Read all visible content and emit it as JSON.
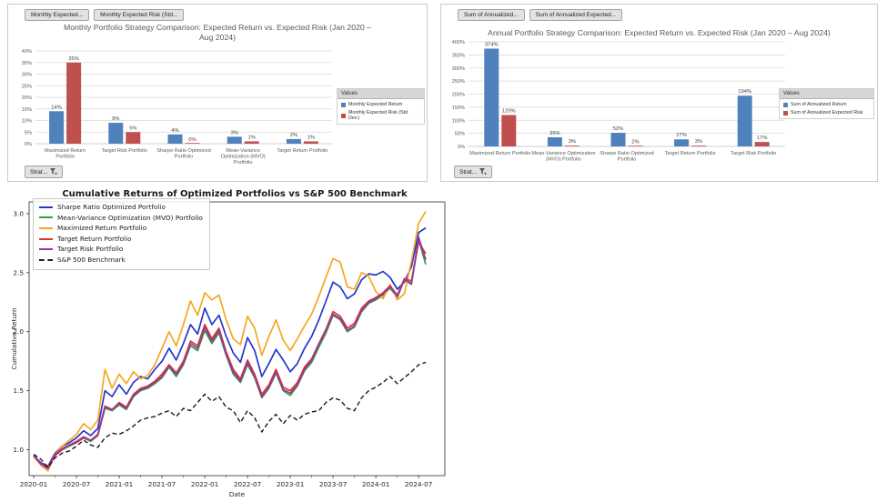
{
  "panels": {
    "monthly": {
      "field_buttons": [
        "Monthly Expected...",
        "Monthly Expected Risk  (Std..."
      ],
      "legend_header": "Values",
      "strategy_button": "Strat..."
    },
    "annual": {
      "field_buttons": [
        "Sum of Annualized...",
        "Sum of Annualized Expected..."
      ],
      "legend_header": "Values",
      "strategy_button": "Strat..."
    }
  },
  "chart_data": [
    {
      "type": "bar",
      "title": "Monthly Portfolio Strategy Comparison: Expected Return vs. Expected Risk (Jan 2020 – Aug 2024)",
      "categories": [
        "Maximized Return Portfolio",
        "Target Risk Portfolio",
        "Sharpe Ratio Optimized Portfolio",
        "Mean-Variance Optimization (MVO) Portfolio",
        "Target Return Portfolio"
      ],
      "series": [
        {
          "name": "Monthly Expected Return",
          "color": "#4F81BD",
          "values": [
            14,
            9,
            4,
            3,
            2
          ]
        },
        {
          "name": "Monthly Expected Risk (Std. Dev.)",
          "color": "#C0504D",
          "values": [
            35,
            5,
            0,
            1,
            1
          ]
        }
      ],
      "ylim": [
        0,
        40
      ],
      "ytick_step": 5,
      "unit": "%",
      "grid": true,
      "legend_position": "right"
    },
    {
      "type": "bar",
      "title": "Annual Portfolio Strategy Comparison: Expected Return vs. Expected Risk (Jan 2020 – Aug 2024)",
      "categories": [
        "Maximized Return Portfolio",
        "Mean-Variance Optimization (MVO) Portfolio",
        "Sharpe Ratio Optimized Portfolio",
        "Target Return Portfolio",
        "Target Risk Portfolio"
      ],
      "series": [
        {
          "name": "Sum of Annualized Return",
          "color": "#4F81BD",
          "values": [
            374,
            35,
            52,
            27,
            194
          ]
        },
        {
          "name": "Sum of Annualized Expected Risk",
          "color": "#C0504D",
          "values": [
            120,
            3,
            2,
            3,
            17
          ]
        }
      ],
      "ylim": [
        0,
        400
      ],
      "ytick_step": 50,
      "unit": "%",
      "grid": true,
      "legend_position": "right"
    },
    {
      "type": "line",
      "title": "Cumulative Returns of Optimized Portfolios vs S&P 500 Benchmark",
      "xlabel": "Date",
      "ylabel": "Cumulative Return",
      "x_ticks": [
        "2020-01",
        "2020-07",
        "2021-01",
        "2021-07",
        "2022-01",
        "2022-07",
        "2023-01",
        "2023-07",
        "2024-01",
        "2024-07"
      ],
      "y_ticks": [
        1.0,
        1.5,
        2.0,
        2.5,
        3.0
      ],
      "ylim": [
        0.78,
        3.1
      ],
      "grid": false,
      "legend_position": "upper left",
      "months": [
        "2020-01",
        "2020-02",
        "2020-03",
        "2020-04",
        "2020-05",
        "2020-06",
        "2020-07",
        "2020-08",
        "2020-09",
        "2020-10",
        "2020-11",
        "2020-12",
        "2021-01",
        "2021-02",
        "2021-03",
        "2021-04",
        "2021-05",
        "2021-06",
        "2021-07",
        "2021-08",
        "2021-09",
        "2021-10",
        "2021-11",
        "2021-12",
        "2022-01",
        "2022-02",
        "2022-03",
        "2022-04",
        "2022-05",
        "2022-06",
        "2022-07",
        "2022-08",
        "2022-09",
        "2022-10",
        "2022-11",
        "2022-12",
        "2023-01",
        "2023-02",
        "2023-03",
        "2023-04",
        "2023-05",
        "2023-06",
        "2023-07",
        "2023-08",
        "2023-09",
        "2023-10",
        "2023-11",
        "2023-12",
        "2024-01",
        "2024-02",
        "2024-03",
        "2024-04",
        "2024-05",
        "2024-06",
        "2024-07",
        "2024-08"
      ],
      "series": [
        {
          "name": "Sharpe Ratio Optimized Portfolio",
          "color": "#2336CC",
          "dash": null,
          "values": [
            0.95,
            0.89,
            0.86,
            0.97,
            1.03,
            1.06,
            1.1,
            1.16,
            1.12,
            1.18,
            1.5,
            1.45,
            1.55,
            1.47,
            1.57,
            1.62,
            1.6,
            1.68,
            1.75,
            1.86,
            1.76,
            1.9,
            2.06,
            1.98,
            2.2,
            2.06,
            2.14,
            1.96,
            1.82,
            1.74,
            1.95,
            1.84,
            1.62,
            1.73,
            1.85,
            1.76,
            1.66,
            1.73,
            1.86,
            1.96,
            2.1,
            2.26,
            2.42,
            2.38,
            2.28,
            2.32,
            2.44,
            2.49,
            2.48,
            2.51,
            2.46,
            2.36,
            2.42,
            2.55,
            2.84,
            2.88
          ]
        },
        {
          "name": "Mean-Variance Optimization (MVO) Portfolio",
          "color": "#2E9E3C",
          "dash": null,
          "values": [
            0.95,
            0.88,
            0.85,
            0.95,
            1.0,
            1.03,
            1.06,
            1.1,
            1.07,
            1.12,
            1.35,
            1.33,
            1.38,
            1.34,
            1.45,
            1.5,
            1.52,
            1.56,
            1.61,
            1.7,
            1.62,
            1.72,
            1.88,
            1.84,
            2.01,
            1.9,
            1.99,
            1.8,
            1.64,
            1.57,
            1.72,
            1.61,
            1.44,
            1.52,
            1.65,
            1.5,
            1.46,
            1.54,
            1.67,
            1.74,
            1.87,
            1.99,
            2.14,
            2.1,
            2.0,
            2.04,
            2.17,
            2.24,
            2.27,
            2.31,
            2.37,
            2.29,
            2.44,
            2.4,
            2.78,
            2.57
          ]
        },
        {
          "name": "Maximized Return Portfolio",
          "color": "#F5A623",
          "dash": null,
          "values": [
            0.94,
            0.87,
            0.82,
            0.96,
            1.03,
            1.08,
            1.13,
            1.22,
            1.17,
            1.25,
            1.68,
            1.52,
            1.64,
            1.56,
            1.66,
            1.6,
            1.63,
            1.72,
            1.86,
            2.0,
            1.88,
            2.06,
            2.26,
            2.14,
            2.33,
            2.27,
            2.31,
            2.1,
            1.94,
            1.89,
            2.13,
            2.03,
            1.8,
            1.96,
            2.1,
            1.93,
            1.84,
            1.94,
            2.05,
            2.15,
            2.3,
            2.46,
            2.62,
            2.59,
            2.38,
            2.36,
            2.5,
            2.47,
            2.34,
            2.28,
            2.4,
            2.27,
            2.32,
            2.6,
            2.92,
            3.02
          ]
        },
        {
          "name": "Target Return Portfolio",
          "color": "#E03228",
          "dash": null,
          "values": [
            0.95,
            0.88,
            0.85,
            0.96,
            1.01,
            1.04,
            1.07,
            1.11,
            1.08,
            1.13,
            1.37,
            1.34,
            1.4,
            1.36,
            1.47,
            1.52,
            1.54,
            1.58,
            1.64,
            1.72,
            1.65,
            1.75,
            1.92,
            1.88,
            2.06,
            1.94,
            2.03,
            1.83,
            1.68,
            1.6,
            1.76,
            1.64,
            1.47,
            1.55,
            1.68,
            1.53,
            1.5,
            1.57,
            1.7,
            1.77,
            1.9,
            2.02,
            2.17,
            2.13,
            2.03,
            2.07,
            2.2,
            2.26,
            2.29,
            2.33,
            2.39,
            2.31,
            2.45,
            2.43,
            2.76,
            2.66
          ]
        },
        {
          "name": "Target Risk Portfolio",
          "color": "#97389F",
          "dash": null,
          "values": [
            0.95,
            0.88,
            0.84,
            0.95,
            1.0,
            1.04,
            1.06,
            1.1,
            1.08,
            1.12,
            1.36,
            1.34,
            1.39,
            1.35,
            1.46,
            1.51,
            1.53,
            1.57,
            1.62,
            1.71,
            1.64,
            1.73,
            1.9,
            1.86,
            2.04,
            1.92,
            2.01,
            1.81,
            1.66,
            1.58,
            1.74,
            1.62,
            1.45,
            1.53,
            1.66,
            1.51,
            1.48,
            1.55,
            1.68,
            1.76,
            1.89,
            2.01,
            2.15,
            2.11,
            2.01,
            2.05,
            2.18,
            2.25,
            2.28,
            2.32,
            2.38,
            2.3,
            2.44,
            2.41,
            2.8,
            2.61
          ]
        },
        {
          "name": "S&P 500 Benchmark",
          "color": "#1a1a1a",
          "dash": "5,3",
          "values": [
            0.96,
            0.92,
            0.85,
            0.93,
            0.97,
            0.99,
            1.03,
            1.08,
            1.04,
            1.02,
            1.1,
            1.14,
            1.13,
            1.16,
            1.2,
            1.25,
            1.27,
            1.28,
            1.31,
            1.33,
            1.28,
            1.35,
            1.33,
            1.4,
            1.47,
            1.41,
            1.45,
            1.36,
            1.33,
            1.23,
            1.33,
            1.27,
            1.15,
            1.24,
            1.3,
            1.22,
            1.29,
            1.25,
            1.3,
            1.32,
            1.33,
            1.4,
            1.44,
            1.42,
            1.35,
            1.33,
            1.44,
            1.5,
            1.53,
            1.57,
            1.62,
            1.56,
            1.61,
            1.66,
            1.72,
            1.74
          ]
        }
      ]
    }
  ]
}
